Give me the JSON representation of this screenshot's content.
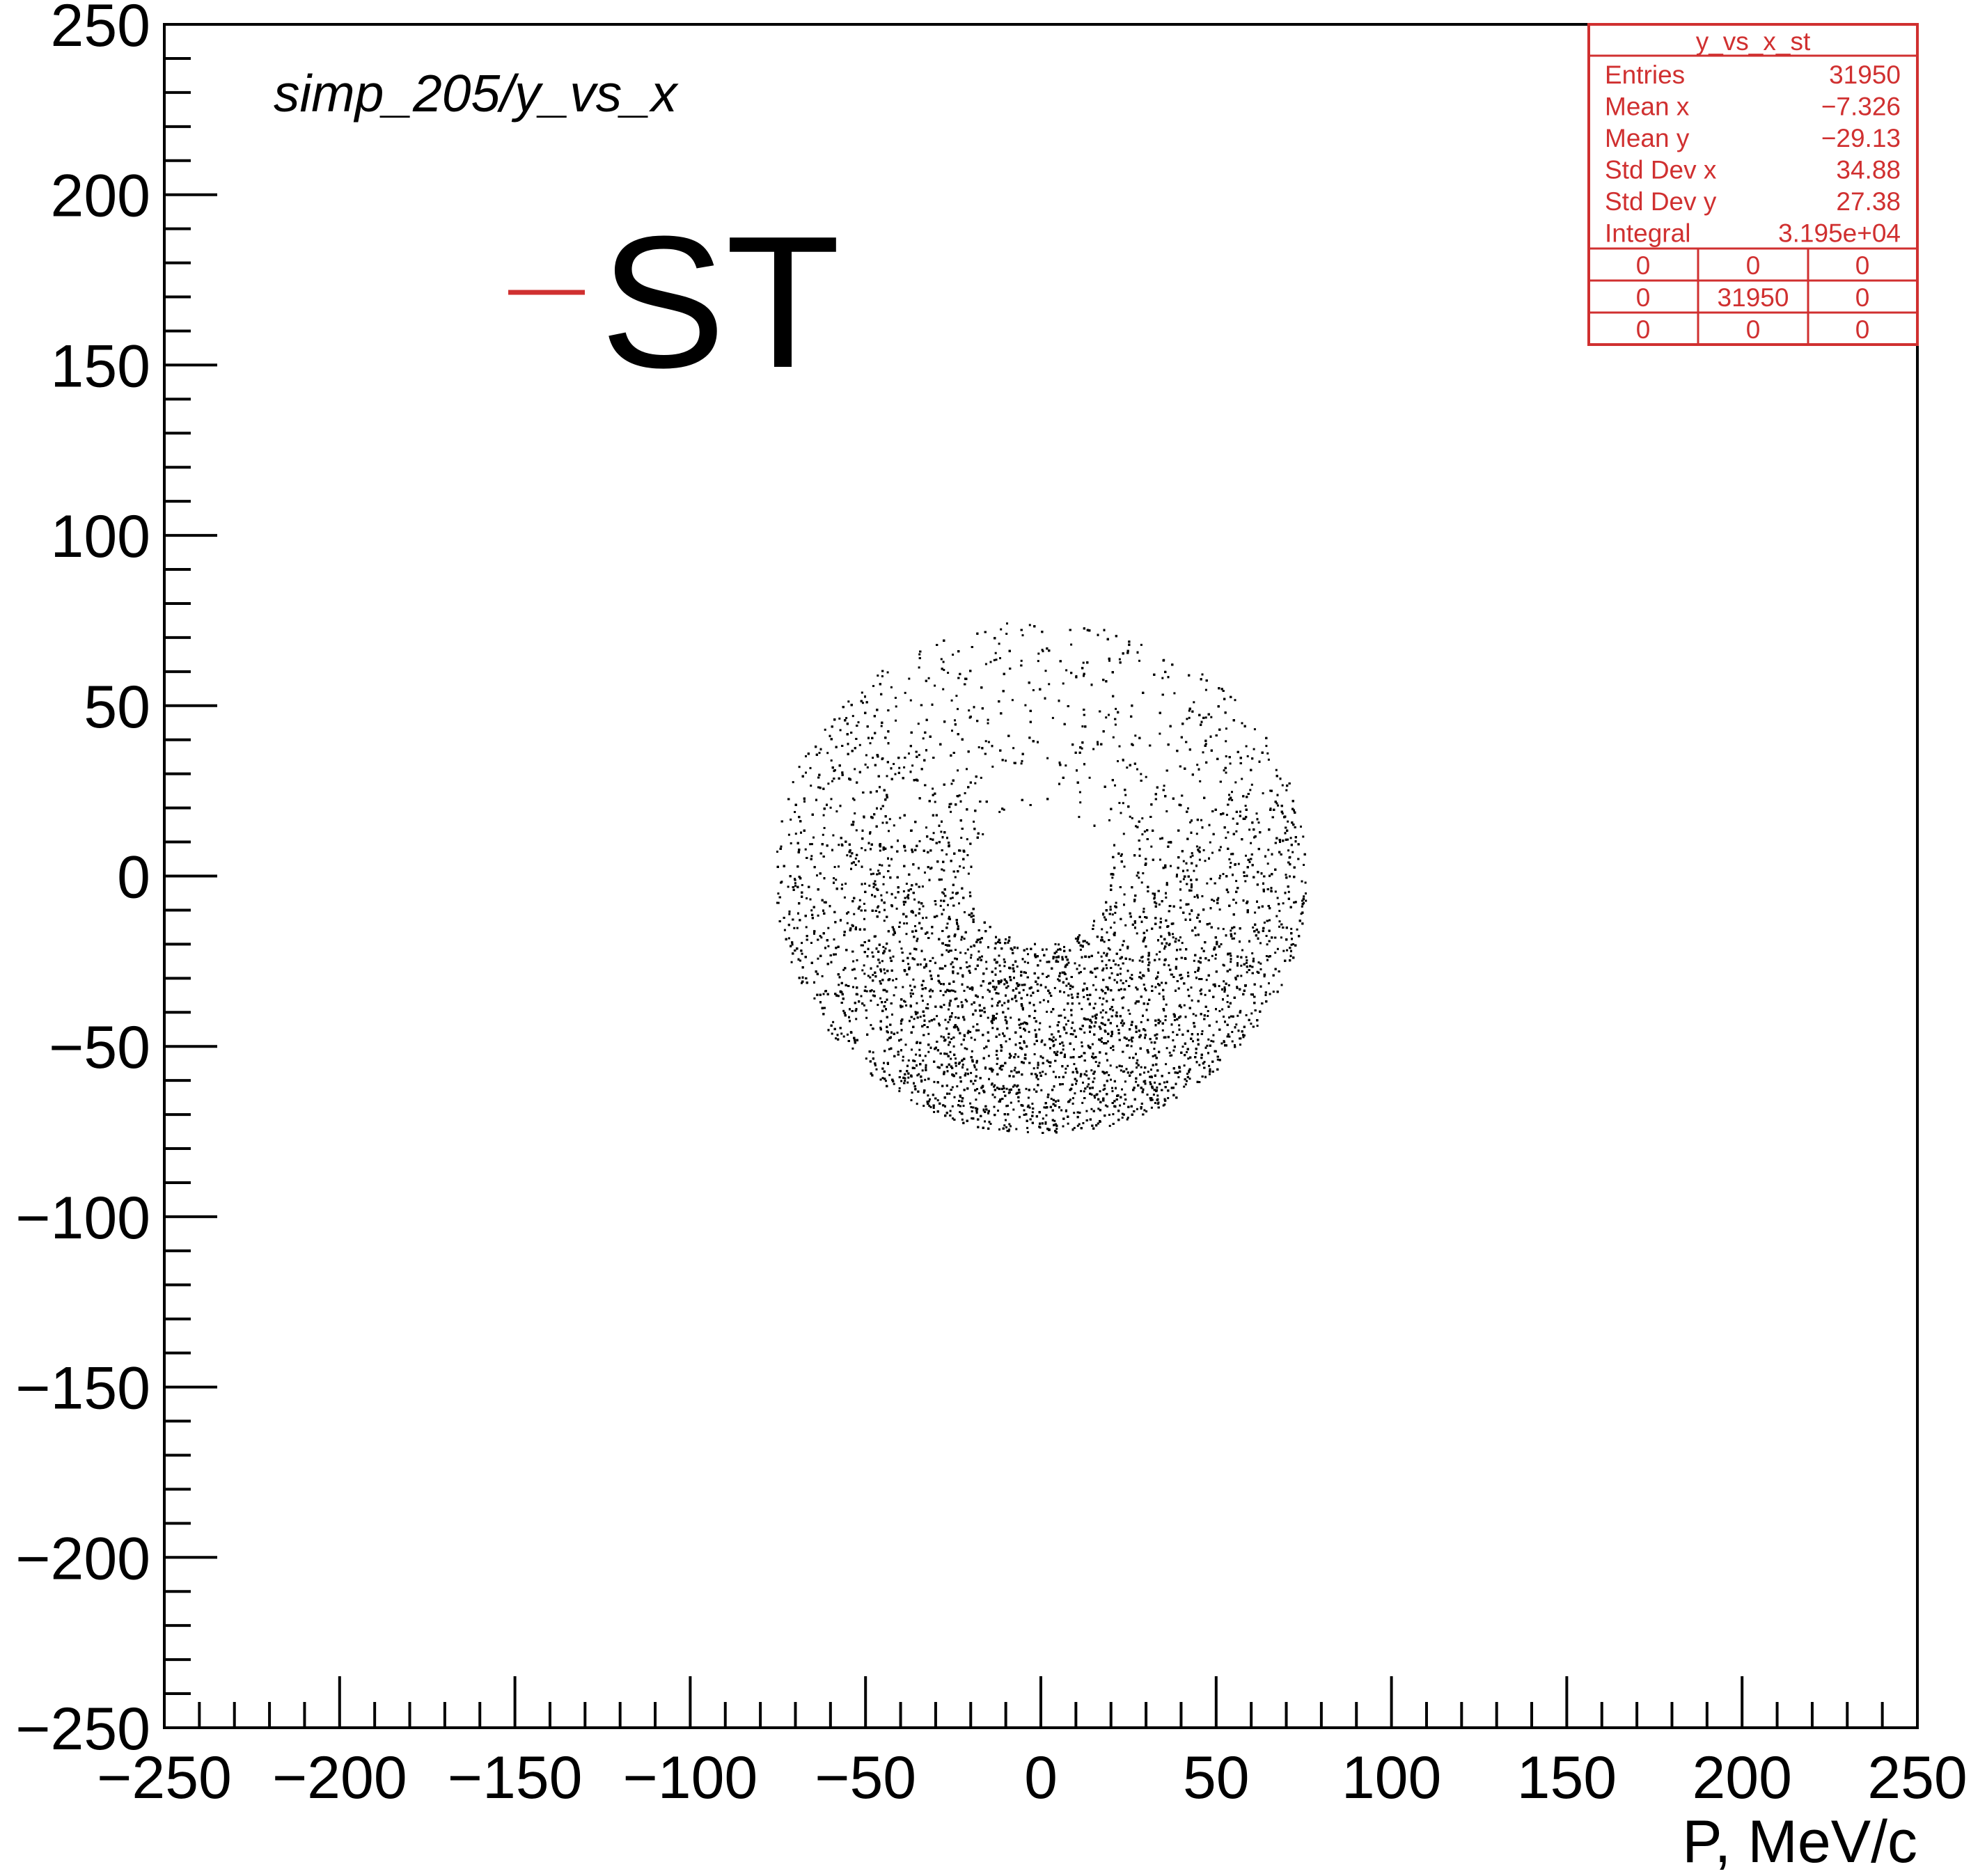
{
  "chart_data": {
    "type": "scatter",
    "title": "simp_205/y_vs_x",
    "xlabel": "P, MeV/c",
    "ylabel": "",
    "xlim": [
      -250,
      250
    ],
    "ylim": [
      -250,
      250
    ],
    "x_ticks": [
      "−250",
      "−200",
      "−150",
      "−100",
      "−50",
      "0",
      "50",
      "100",
      "150",
      "200",
      "250"
    ],
    "y_ticks": [
      "−250",
      "−200",
      "−150",
      "−100",
      "−50",
      "0",
      "50",
      "100",
      "150",
      "200",
      "250"
    ],
    "grid": false,
    "legend": {
      "placement": "top-left",
      "entries": [
        "ST"
      ]
    },
    "series": [
      {
        "name": "ST",
        "distribution": "annulus",
        "center": [
          0,
          0
        ],
        "inner_radius": 20,
        "outer_radius": 76,
        "points": 31950
      }
    ],
    "stats": {
      "name": "y_vs_x_st",
      "rows": [
        {
          "label": "Entries",
          "value": "31950"
        },
        {
          "label": "Mean x",
          "value": "−7.326"
        },
        {
          "label": "Mean y",
          "value": "−29.13"
        },
        {
          "label": "Std Dev x",
          "value": "34.88"
        },
        {
          "label": "Std Dev y",
          "value": "27.38"
        },
        {
          "label": "Integral",
          "value": "3.195e+04"
        }
      ],
      "grid": [
        [
          "0",
          "0",
          "0"
        ],
        [
          "0",
          "31950",
          "0"
        ],
        [
          "0",
          "0",
          "0"
        ]
      ]
    }
  },
  "colors": {
    "stats": "#d03030",
    "points": "#000000",
    "legend_line": "#d03030"
  }
}
